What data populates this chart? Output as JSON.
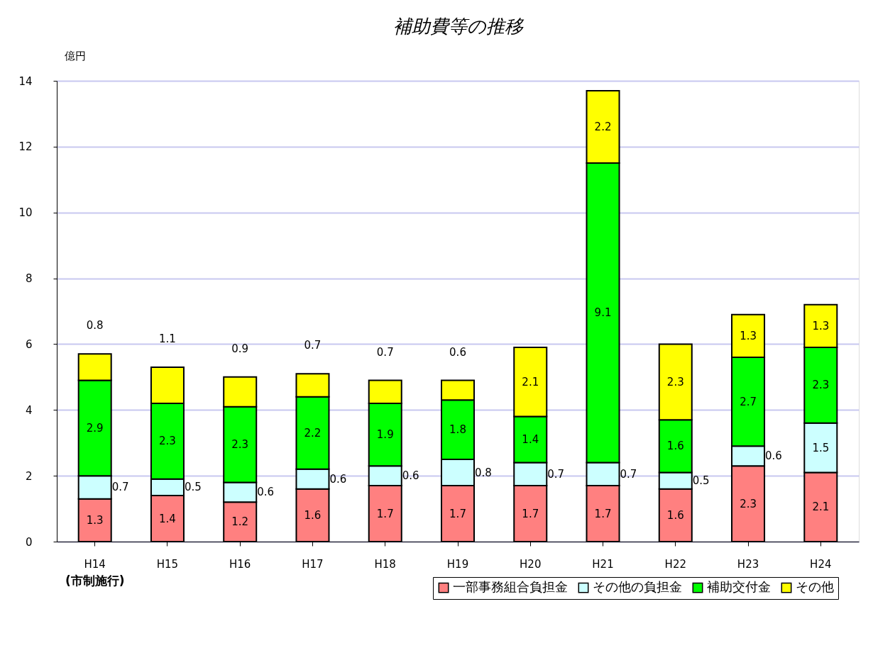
{
  "chart_data": {
    "type": "bar",
    "title": "補助費等の推移",
    "ylabel": "億円",
    "categories": [
      "H14",
      "H15",
      "H16",
      "H17",
      "H18",
      "H19",
      "H20",
      "H21",
      "H22",
      "H23",
      "H24"
    ],
    "stacked": true,
    "series": [
      {
        "name": "一部事務組合負担金",
        "color": "#ff8080",
        "values": [
          1.3,
          1.4,
          1.2,
          1.6,
          1.7,
          1.7,
          1.7,
          1.7,
          1.6,
          2.3,
          2.1
        ]
      },
      {
        "name": "その他の負担金",
        "color": "#ccffff",
        "values": [
          0.7,
          0.5,
          0.6,
          0.6,
          0.6,
          0.8,
          0.7,
          0.7,
          0.5,
          0.6,
          1.5
        ]
      },
      {
        "name": "補助交付金",
        "color": "#00ff00",
        "values": [
          2.9,
          2.3,
          2.3,
          2.2,
          1.9,
          1.8,
          1.4,
          9.1,
          1.6,
          2.7,
          2.3
        ]
      },
      {
        "name": "その他",
        "color": "#ffff00",
        "values": [
          0.8,
          1.1,
          0.9,
          0.7,
          0.7,
          0.6,
          2.1,
          2.2,
          2.3,
          1.3,
          1.3
        ]
      }
    ],
    "ylim": [
      0,
      14
    ],
    "yticks": [
      0,
      2,
      4,
      6,
      8,
      10,
      12,
      14
    ],
    "grid": "y",
    "legend": "bottom right",
    "data_labels": true,
    "annotations": [
      "(市制施行)"
    ]
  }
}
